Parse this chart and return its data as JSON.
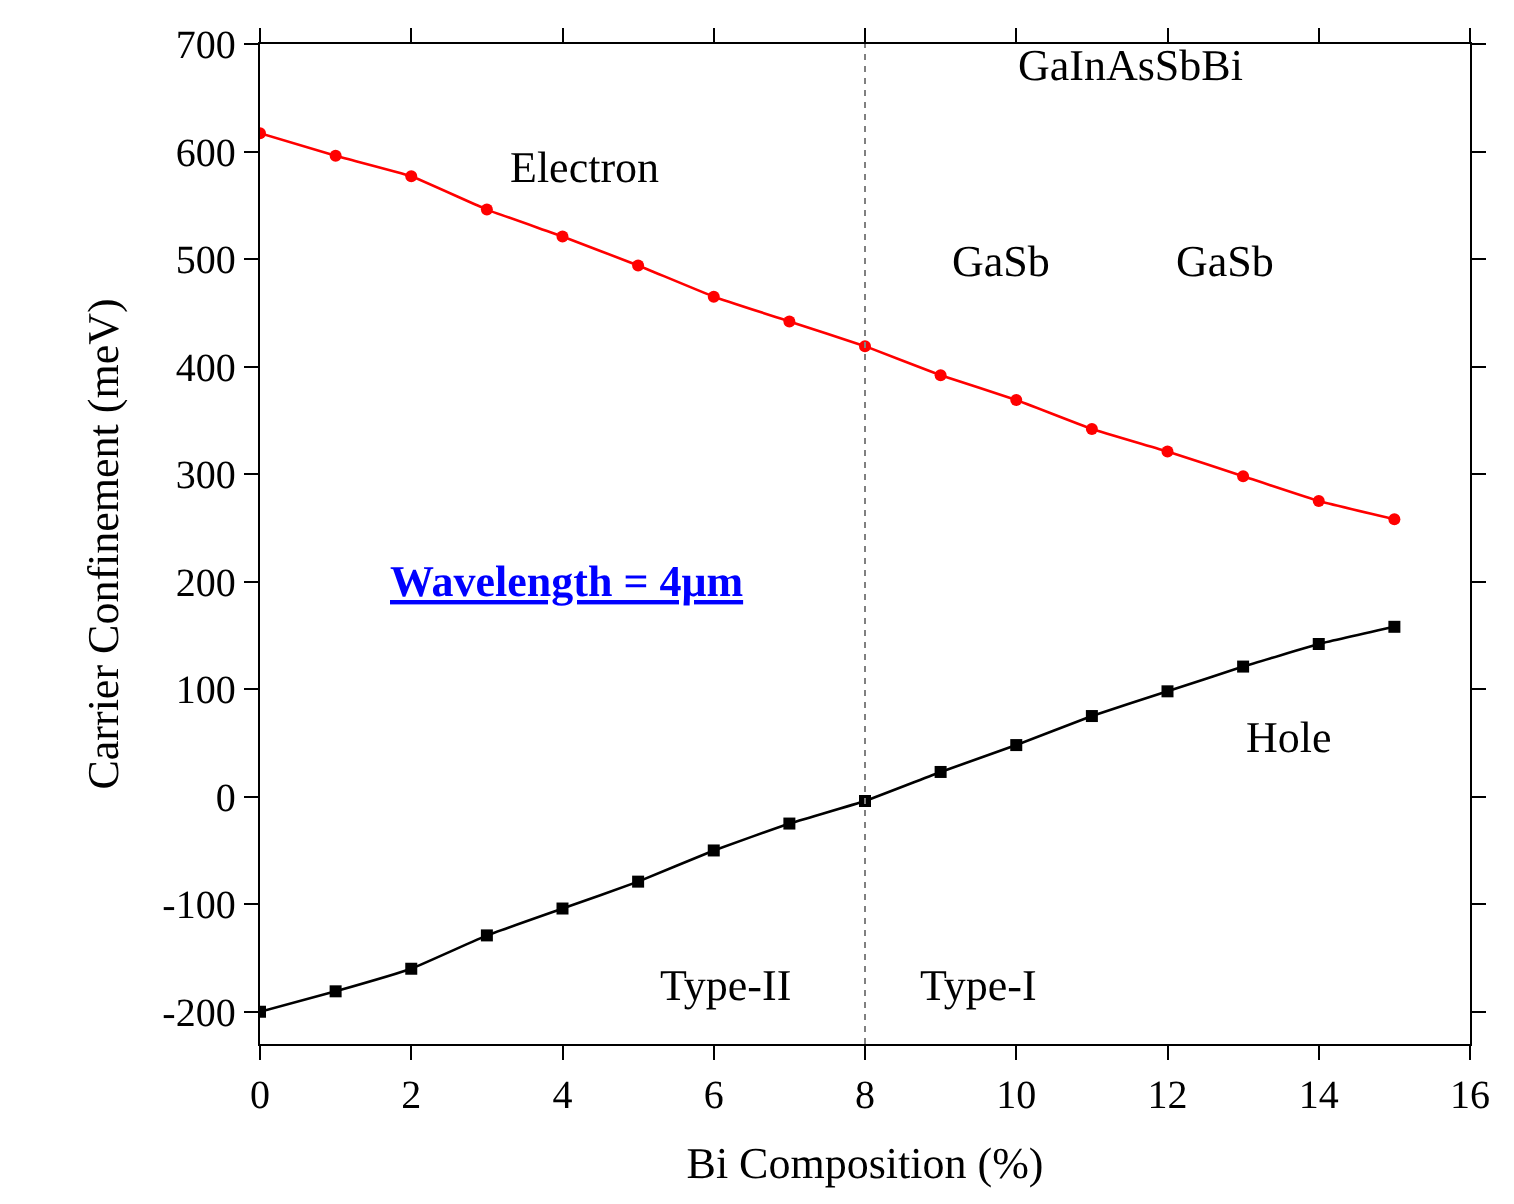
{
  "chart_data": {
    "type": "line",
    "xlabel": "Bi Composition (%)",
    "ylabel": "Carrier Confinement (meV)",
    "x": [
      0,
      1,
      2,
      3,
      4,
      5,
      6,
      7,
      8,
      9,
      10,
      11,
      12,
      13,
      14,
      15
    ],
    "series": [
      {
        "name": "Electron",
        "color": "#ff0000",
        "marker": "circle",
        "values": [
          617,
          596,
          577,
          546,
          521,
          494,
          465,
          442,
          419,
          392,
          369,
          342,
          321,
          298,
          275,
          258
        ]
      },
      {
        "name": "Hole",
        "color": "#000000",
        "marker": "square",
        "values": [
          -200,
          -181,
          -160,
          -129,
          -104,
          -79,
          -50,
          -25,
          -4,
          23,
          48,
          75,
          98,
          121,
          142,
          158
        ]
      }
    ],
    "xlim": [
      0,
      16
    ],
    "xticks": [
      0,
      2,
      4,
      6,
      8,
      10,
      12,
      14,
      16
    ],
    "ylim": [
      -230,
      700
    ],
    "yticks": [
      -200,
      -100,
      0,
      100,
      200,
      300,
      400,
      500,
      600,
      700
    ],
    "ref_lines": [
      {
        "axis": "x",
        "value": 8,
        "color": "#808080",
        "line_style": "dotted"
      }
    ],
    "annotations": [
      "Type-II",
      "Type-I",
      "Wavelength = 4μm",
      "GaInAsSbBi",
      "GaSb",
      "GaSb"
    ],
    "legend": false,
    "line_style": "solid"
  }
}
